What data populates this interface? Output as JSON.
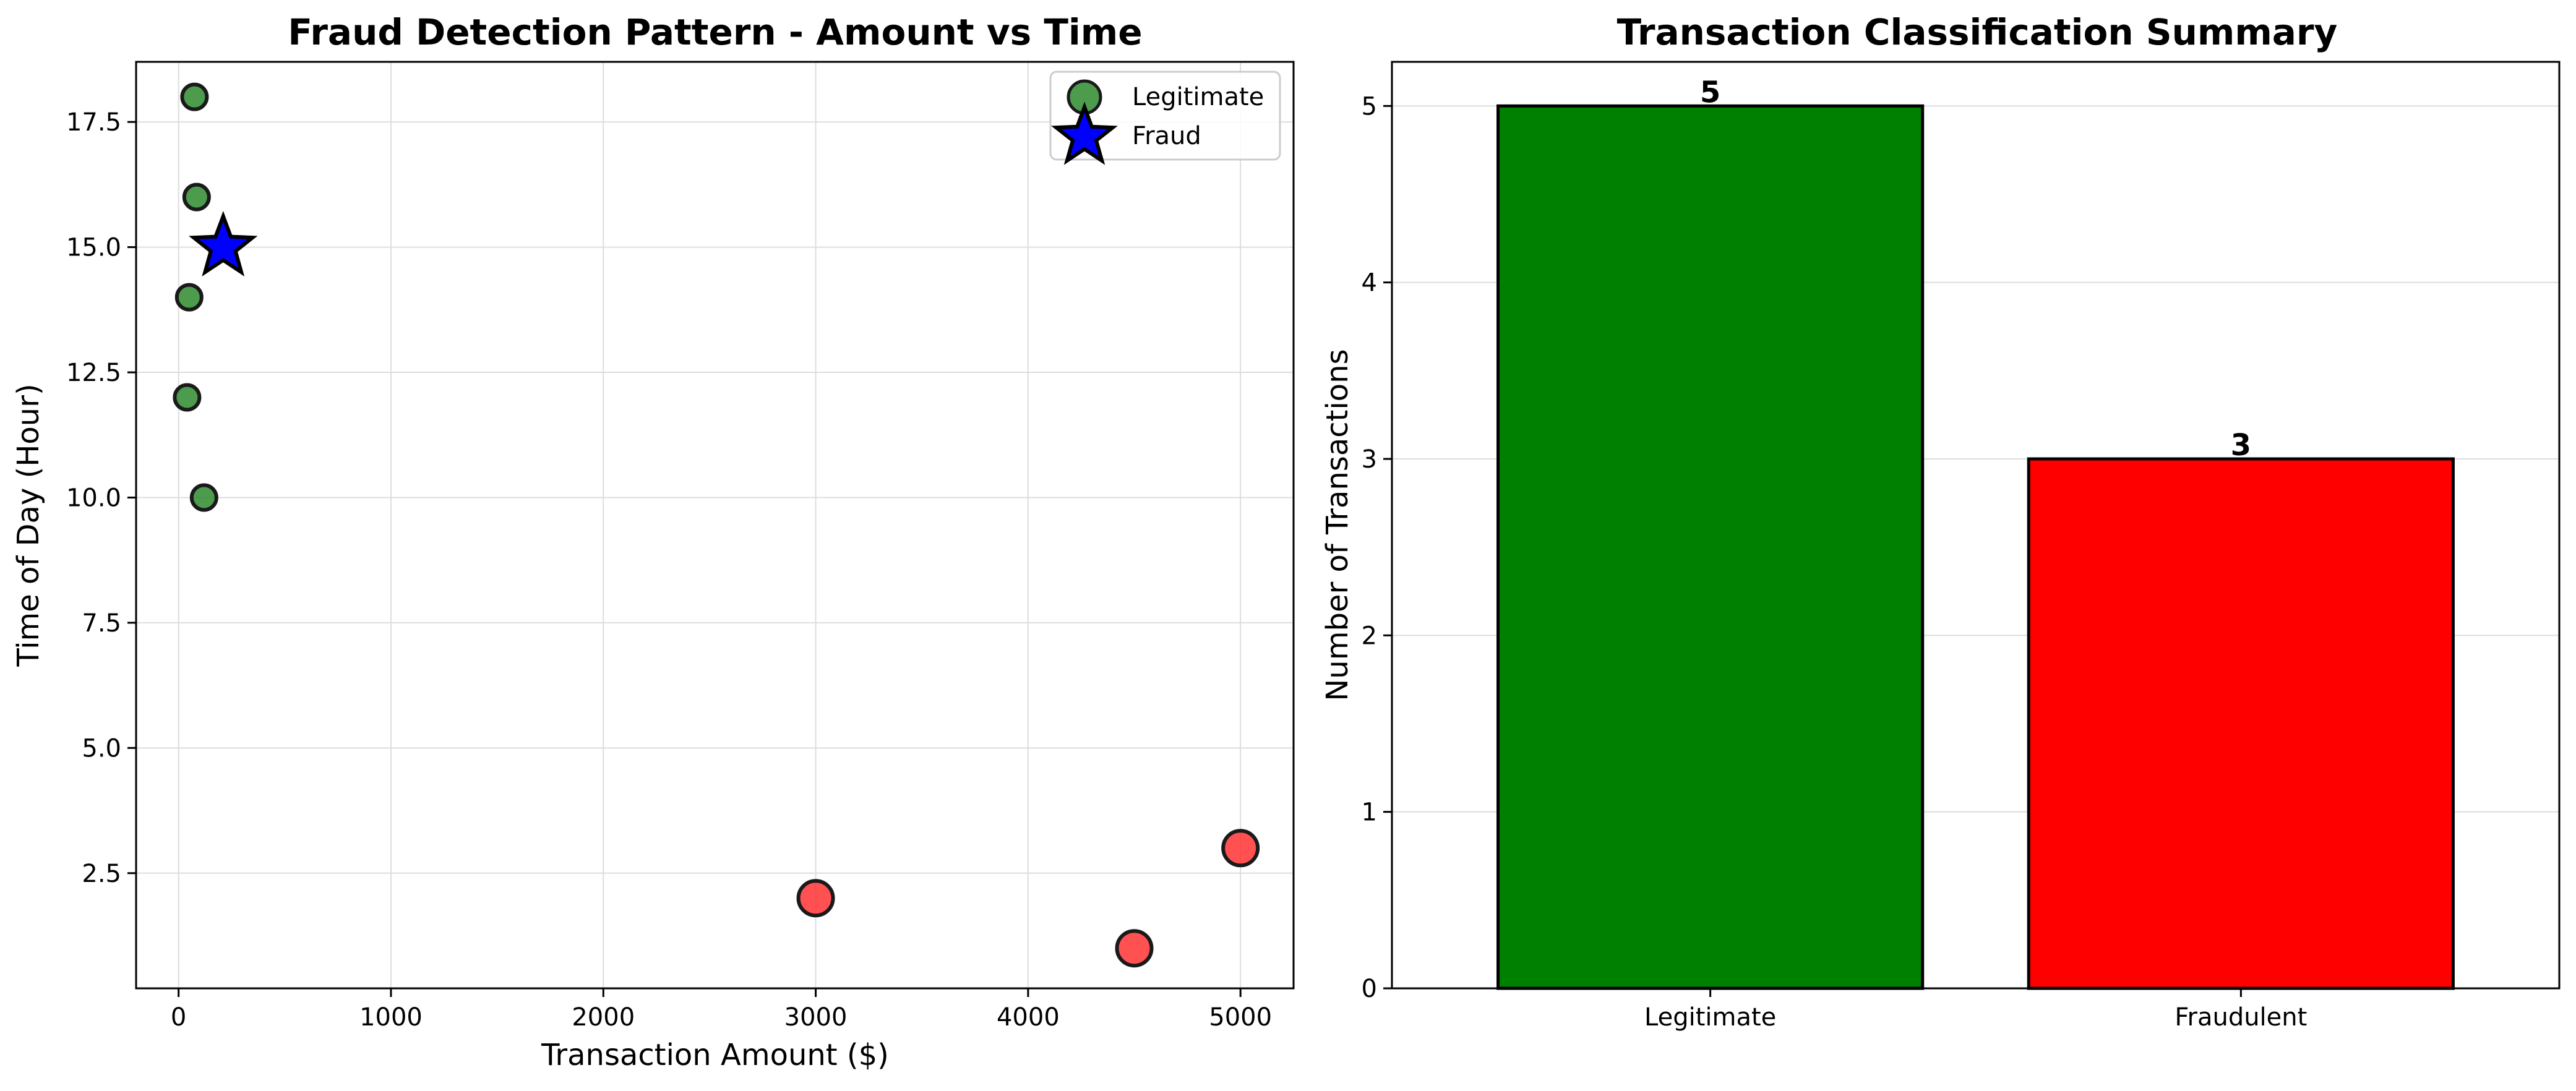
{
  "colors": {
    "legitimate_point": "#2e8b2e",
    "fraud_point": "#ff3333",
    "fraud_star": "#0000ff",
    "legitimate_bar": "#008000",
    "fraudulent_bar": "#ff0000",
    "grid": "#dddddd",
    "edge": "#1a1a1a"
  },
  "chart_data": [
    {
      "type": "scatter",
      "title": "Fraud Detection Pattern - Amount vs Time",
      "xlabel": "Transaction Amount ($)",
      "ylabel": "Time of Day (Hour)",
      "xlim": [
        -200,
        5250
      ],
      "ylim": [
        0.2,
        18.7
      ],
      "xticks": [
        0,
        1000,
        2000,
        3000,
        4000,
        5000
      ],
      "yticks": [
        2.5,
        5.0,
        7.5,
        10.0,
        12.5,
        15.0,
        17.5
      ],
      "grid": true,
      "legend_position": "top-right",
      "legend": [
        "Legitimate",
        "Fraud"
      ],
      "series": [
        {
          "name": "Legitimate",
          "marker": "circle",
          "points": [
            {
              "x": 75,
              "y": 18
            },
            {
              "x": 85,
              "y": 16
            },
            {
              "x": 50,
              "y": 14
            },
            {
              "x": 40,
              "y": 12
            },
            {
              "x": 120,
              "y": 10
            }
          ]
        },
        {
          "name": "Fraud",
          "marker": "star",
          "points": [
            {
              "x": 210,
              "y": 15
            }
          ]
        },
        {
          "marker": "circle",
          "points": [
            {
              "x": 3000,
              "y": 2
            },
            {
              "x": 4500,
              "y": 1
            },
            {
              "x": 5000,
              "y": 3
            }
          ]
        }
      ]
    },
    {
      "type": "bar",
      "title": "Transaction Classification Summary",
      "xlabel": "",
      "ylabel": "Number of Transactions",
      "categories": [
        "Legitimate",
        "Fraudulent"
      ],
      "values": [
        5,
        3
      ],
      "value_labels": [
        "5",
        "3"
      ],
      "ylim": [
        0,
        5.25
      ],
      "yticks": [
        0,
        1,
        2,
        3,
        4,
        5
      ],
      "grid": true
    }
  ]
}
